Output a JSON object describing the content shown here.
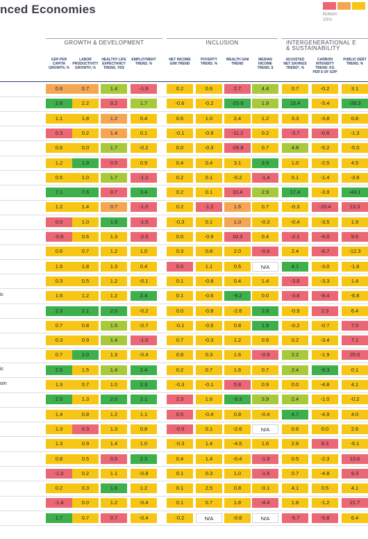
{
  "title": "nced Economies",
  "legend": {
    "label": "Bottom\n20%",
    "colors": [
      "#ea6773",
      "#f5a653",
      "#f7c614",
      "#a8c93a",
      "#3daf4b"
    ]
  },
  "groups": [
    {
      "label": "GROWTH & DEVELOPMENT"
    },
    {
      "label": "INCLUSION"
    },
    {
      "label": "INTERGENERATIONAL E\n& SUSTAINABILITY"
    }
  ],
  "columns": [
    "GDP PER CAPITA GROWTH, %",
    "LABOR PRODUCTIVITY GROWTH, %",
    "HEALTHY LIFE EXPECTANCY TREND, YRS",
    "EMPLOYMENT TREND, %",
    "NET INCOME GINI TREND",
    "POVERTY TREND, %",
    "WEALTH GINI TREND",
    "MEDIAN INCOME TREND, $",
    "ADJUSTED NET SAVINGS TREND*, %",
    "CARBON INTENSITY TREND, KG PER $ OF GDP",
    "PUBLIC DEBT TREND, %"
  ],
  "row_labels": [
    "",
    "",
    "",
    "",
    "",
    "",
    "",
    "",
    "",
    "",
    "",
    "",
    "",
    "",
    "ic",
    "",
    "",
    "",
    "",
    "ic",
    "om",
    "",
    "",
    "",
    "",
    "",
    "",
    "",
    "",
    ""
  ],
  "rows": [
    [
      "0.6",
      "0.7",
      "1.4",
      "-1.9",
      "0.2",
      "0.6",
      "2.7",
      "4.4",
      "0.7",
      "-0.2",
      "3.1"
    ],
    [
      "2.8",
      "2.2",
      "0.2",
      "1.7",
      "-0.6",
      "-0.2",
      "-20.6",
      "1.9",
      "15.4",
      "-5.4",
      "-39.3"
    ],
    [
      "1.1",
      "1.8",
      "1.2",
      "0.4",
      "0.6",
      "1.0",
      "2.4",
      "1.2",
      "3.3",
      "-3.8",
      "0.8"
    ],
    [
      "0.3",
      "0.2",
      "1.4",
      "0.1",
      "-0.1",
      "-0.9",
      "-11.2",
      "0.2",
      "-3.7",
      "-0.6",
      "-1.3"
    ],
    [
      "0.6",
      "0.0",
      "1.7",
      "-0.2",
      "0.0",
      "-0.3",
      "-26.8",
      "0.7",
      "4.8",
      "-5.2",
      "-5.0"
    ],
    [
      "1.2",
      "1.9",
      "0.5",
      "0.9",
      "0.4",
      "0.4",
      "3.1",
      "3.9",
      "1.0",
      "-2.5",
      "4.5"
    ],
    [
      "0.5",
      "1.0",
      "1.7",
      "-1.2",
      "0.2",
      "0.1",
      "-0.2",
      "-1.4",
      "0.1",
      "-1.4",
      "-3.8"
    ],
    [
      "7.1",
      "7.6",
      "0.7",
      "3.4",
      "0.2",
      "0.1",
      "10.4",
      "2.9",
      "17.4",
      "-3.9",
      "-43.1"
    ],
    [
      "1.2",
      "1.4",
      "0.7",
      "-1.0",
      "0.2",
      "-1.2",
      "1.6",
      "0.7",
      "-0.3",
      "-10.4",
      "13.3"
    ],
    [
      "0.0",
      "1.0",
      "1.6",
      "-1.5",
      "-0.3",
      "0.1",
      "1.0",
      "-0.3",
      "-0.4",
      "-3.5",
      "1.9"
    ],
    [
      "-0.6",
      "0.6",
      "1.3",
      "-2.5",
      "0.0",
      "-0.9",
      "10.3",
      "0.4",
      "-2.1",
      "-6.0",
      "9.6"
    ],
    [
      "0.6",
      "0.7",
      "1.2",
      "1.0",
      "0.3",
      "0.8",
      "2.0",
      "-0.6",
      "2.4",
      "-6.7",
      "-12.3"
    ],
    [
      "1.5",
      "1.8",
      "1.3",
      "0.4",
      "0.5",
      "1.1",
      "0.5",
      "N/A",
      "4.1",
      "-3.0",
      "-1.8"
    ],
    [
      "0.3",
      "0.5",
      "1.2",
      "-0.1",
      "0.1",
      "-0.8",
      "0.4",
      "1.4",
      "-3.8",
      "-3.3",
      "1.4"
    ],
    [
      "1.6",
      "1.2",
      "1.2",
      "2.4",
      "0.1",
      "-0.6",
      "-9.2",
      "0.0",
      "-3.8",
      "-8.4",
      "-6.8"
    ],
    [
      "2.3",
      "2.1",
      "2.0",
      "-0.2",
      "0.0",
      "-0.8",
      "-2.6",
      "2.8",
      "-0.9",
      "2.3",
      "6.4"
    ],
    [
      "0.7",
      "0.8",
      "1.5",
      "-0.7",
      "-0.1",
      "-0.5",
      "0.8",
      "1.9",
      "-0.2",
      "-0.7",
      "7.5"
    ],
    [
      "0.3",
      "0.9",
      "1.4",
      "-1.0",
      "0.7",
      "-0.3",
      "1.2",
      "0.9",
      "0.2",
      "-3.4",
      "7.1"
    ],
    [
      "0.7",
      "2.0",
      "1.3",
      "-0.4",
      "0.8",
      "0.3",
      "1.6",
      "-0.9",
      "2.2",
      "-1.9",
      "25.0"
    ],
    [
      "2.5",
      "1.5",
      "1.4",
      "2.4",
      "0.2",
      "0.7",
      "1.6",
      "0.7",
      "2.4",
      "-9.3",
      "0.1"
    ],
    [
      "1.3",
      "0.7",
      "1.0",
      "2.3",
      "-0.3",
      "-0.1",
      "5.8",
      "0.9",
      "0.0",
      "-4.8",
      "4.1"
    ],
    [
      "2.5",
      "1.3",
      "2.0",
      "2.1",
      "2.3",
      "1.6",
      "-9.3",
      "3.9",
      "2.4",
      "-1.0",
      "-0.2"
    ],
    [
      "1.4",
      "0.8",
      "1.2",
      "1.1",
      "0.5",
      "-0.4",
      "0.8",
      "-0.4",
      "4.7",
      "-4.9",
      "4.0"
    ],
    [
      "1.3",
      "0.3",
      "1.3",
      "0.8",
      "-0.5",
      "0.1",
      "-2.6",
      "N/A",
      "0.6",
      "0.0",
      "2.6"
    ],
    [
      "1.3",
      "0.9",
      "1.4",
      "1.0",
      "-0.3",
      "1.4",
      "-4.5",
      "1.6",
      "2.8",
      "8.3",
      "-6.1"
    ],
    [
      "0.8",
      "0.5",
      "0.5",
      "2.3",
      "0.4",
      "1.4",
      "-0.4",
      "-1.9",
      "0.5",
      "-2.3",
      "13.6"
    ],
    [
      "-1.0",
      "0.2",
      "1.1",
      "-0.8",
      "0.1",
      "0.3",
      "1.0",
      "-1.6",
      "0.7",
      "-4.8",
      "9.3"
    ],
    [
      "0.2",
      "0.3",
      "1.6",
      "1.2",
      "0.1",
      "2.5",
      "0.8",
      "-0.1",
      "4.1",
      "0.5",
      "4.1"
    ],
    [
      "-1.4",
      "0.0",
      "1.2",
      "-0.4",
      "0.1",
      "0.7",
      "1.8",
      "-4.4",
      "1.8",
      "-1.2",
      "21.7"
    ],
    [
      "1.7",
      "0.7",
      "0.7",
      "-0.4",
      "-0.2",
      "N/A",
      "-0.6",
      "N/A",
      "-5.7",
      "-5.8",
      "6.4"
    ]
  ],
  "cell_colors": [
    [
      "o",
      "o",
      "g",
      "r",
      "y",
      "y",
      "r",
      "g",
      "y",
      "y",
      "y"
    ],
    [
      "G",
      "y",
      "r",
      "g",
      "y",
      "y",
      "G",
      "g",
      "G",
      "y",
      "G"
    ],
    [
      "y",
      "y",
      "o",
      "y",
      "y",
      "y",
      "y",
      "y",
      "y",
      "y",
      "y"
    ],
    [
      "r",
      "y",
      "o",
      "y",
      "y",
      "y",
      "r",
      "y",
      "r",
      "r",
      "y"
    ],
    [
      "y",
      "y",
      "g",
      "y",
      "y",
      "y",
      "r",
      "y",
      "g",
      "y",
      "y"
    ],
    [
      "y",
      "G",
      "r",
      "y",
      "y",
      "y",
      "y",
      "G",
      "y",
      "y",
      "y"
    ],
    [
      "y",
      "y",
      "g",
      "r",
      "y",
      "y",
      "y",
      "r",
      "y",
      "y",
      "y"
    ],
    [
      "G",
      "G",
      "r",
      "G",
      "y",
      "y",
      "r",
      "g",
      "G",
      "y",
      "G"
    ],
    [
      "y",
      "y",
      "o",
      "r",
      "y",
      "r",
      "o",
      "y",
      "y",
      "r",
      "r"
    ],
    [
      "r",
      "y",
      "G",
      "r",
      "y",
      "y",
      "o",
      "y",
      "y",
      "y",
      "y"
    ],
    [
      "r",
      "y",
      "y",
      "r",
      "y",
      "y",
      "r",
      "y",
      "r",
      "r",
      "r"
    ],
    [
      "y",
      "y",
      "y",
      "y",
      "y",
      "y",
      "y",
      "r",
      "y",
      "r",
      "y"
    ],
    [
      "y",
      "y",
      "y",
      "y",
      "r",
      "y",
      "y",
      "w",
      "G",
      "y",
      "y"
    ],
    [
      "y",
      "y",
      "y",
      "y",
      "y",
      "y",
      "y",
      "y",
      "r",
      "y",
      "y"
    ],
    [
      "y",
      "y",
      "y",
      "G",
      "y",
      "y",
      "G",
      "y",
      "r",
      "r",
      "y"
    ],
    [
      "G",
      "G",
      "G",
      "y",
      "y",
      "y",
      "y",
      "G",
      "y",
      "r",
      "y"
    ],
    [
      "y",
      "y",
      "g",
      "y",
      "y",
      "y",
      "y",
      "G",
      "y",
      "y",
      "r"
    ],
    [
      "y",
      "y",
      "g",
      "r",
      "y",
      "y",
      "y",
      "y",
      "y",
      "y",
      "r"
    ],
    [
      "y",
      "G",
      "y",
      "y",
      "y",
      "y",
      "y",
      "r",
      "g",
      "y",
      "r"
    ],
    [
      "G",
      "y",
      "g",
      "G",
      "y",
      "y",
      "y",
      "y",
      "g",
      "G",
      "y"
    ],
    [
      "y",
      "y",
      "y",
      "G",
      "y",
      "y",
      "r",
      "y",
      "y",
      "y",
      "y"
    ],
    [
      "G",
      "y",
      "G",
      "G",
      "r",
      "y",
      "G",
      "g",
      "g",
      "y",
      "y"
    ],
    [
      "y",
      "y",
      "y",
      "y",
      "r",
      "y",
      "y",
      "y",
      "G",
      "y",
      "y"
    ],
    [
      "y",
      "r",
      "y",
      "y",
      "r",
      "y",
      "y",
      "w",
      "y",
      "y",
      "y"
    ],
    [
      "y",
      "y",
      "y",
      "y",
      "y",
      "y",
      "y",
      "y",
      "y",
      "r",
      "y"
    ],
    [
      "y",
      "y",
      "r",
      "G",
      "y",
      "y",
      "y",
      "r",
      "y",
      "y",
      "r"
    ],
    [
      "r",
      "y",
      "y",
      "y",
      "y",
      "y",
      "y",
      "r",
      "y",
      "y",
      "r"
    ],
    [
      "y",
      "y",
      "G",
      "y",
      "y",
      "y",
      "y",
      "y",
      "y",
      "y",
      "y"
    ],
    [
      "r",
      "y",
      "y",
      "y",
      "y",
      "y",
      "y",
      "r",
      "y",
      "y",
      "r"
    ],
    [
      "G",
      "y",
      "r",
      "y",
      "y",
      "w",
      "y",
      "w",
      "r",
      "r",
      "y"
    ]
  ],
  "palette": {
    "r": "#ea6773",
    "o": "#f5a653",
    "y": "#f7c614",
    "g": "#a8c93a",
    "G": "#3daf4b",
    "w": "#ffffff"
  }
}
